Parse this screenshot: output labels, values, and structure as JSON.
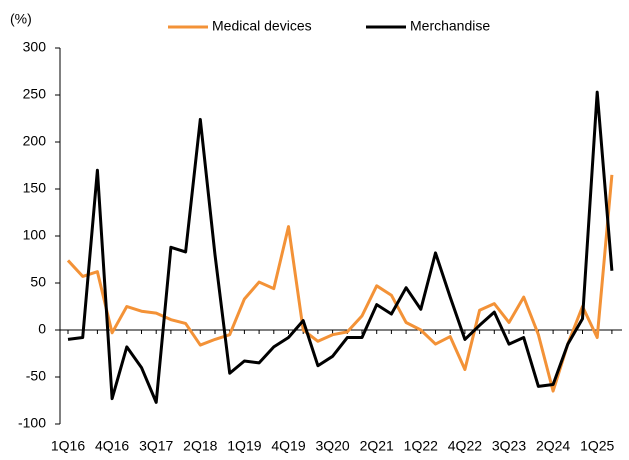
{
  "chart_data": {
    "type": "line",
    "y_label": "(%)",
    "categories": [
      "1Q16",
      null,
      null,
      "4Q16",
      null,
      null,
      "3Q17",
      null,
      null,
      "2Q18",
      null,
      null,
      "1Q19",
      null,
      null,
      "4Q19",
      null,
      null,
      "3Q20",
      null,
      null,
      "2Q21",
      null,
      null,
      "1Q22",
      null,
      null,
      "4Q22",
      null,
      null,
      "3Q23",
      null,
      null,
      "2Q24",
      null,
      null,
      "1Q25",
      null
    ],
    "series": [
      {
        "name": "Medical devices",
        "color": "#f39237",
        "values": [
          74,
          57,
          62,
          -3,
          25,
          20,
          18,
          11,
          7,
          -16,
          -10,
          -5,
          33,
          51,
          44,
          110,
          0,
          -12,
          -5,
          -2,
          15,
          47,
          37,
          8,
          0,
          -15,
          -7,
          -42,
          21,
          28,
          8,
          35,
          -5,
          -65,
          -15,
          25,
          -8,
          165
        ]
      },
      {
        "name": "Merchandise",
        "color": "#000000",
        "values": [
          -10,
          -8,
          170,
          -73,
          -18,
          -40,
          -77,
          88,
          83,
          224,
          80,
          -46,
          -33,
          -35,
          -18,
          -8,
          10,
          -38,
          -28,
          -8,
          -8,
          27,
          17,
          45,
          22,
          82,
          35,
          -10,
          5,
          19,
          -15,
          -8,
          -60,
          -58,
          -15,
          12,
          253,
          63
        ]
      }
    ],
    "ylim": [
      -100,
      300
    ],
    "yticks": [
      -100,
      -50,
      0,
      50,
      100,
      150,
      200,
      250,
      300
    ],
    "legend": "top"
  }
}
